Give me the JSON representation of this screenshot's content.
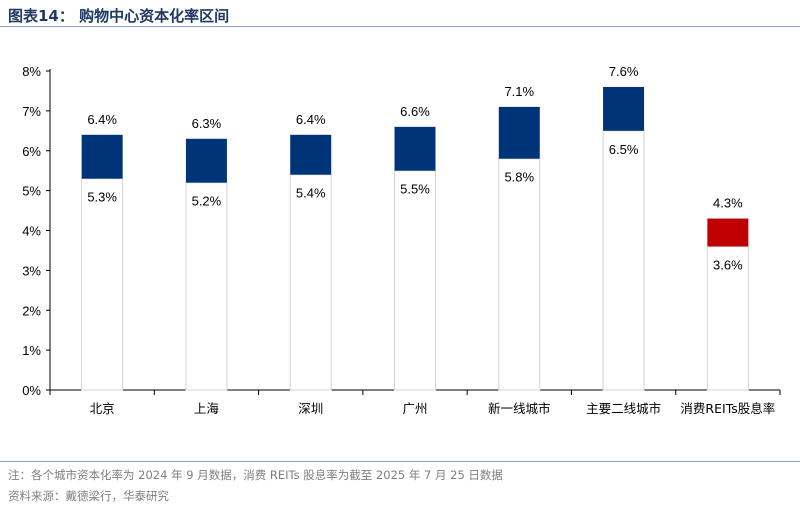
{
  "title": "图表14：  购物中心资本化率区间",
  "footer": {
    "note": "注：各个城市资本化率为 2024 年 9 月数据，消费 REITs 股息率为截至 2025 年 7 月 25 日数据",
    "source": "资料来源：戴德梁行，华泰研究"
  },
  "colors": {
    "upper_default": "#003478",
    "upper_highlight": "#c00000",
    "lower_fill": "#ffffff",
    "lower_border": "#d4d4d4",
    "axis": "#000000",
    "title": "#1f3864",
    "rule": "#8eaadb"
  },
  "chart_data": {
    "type": "bar",
    "subtype": "floating-range",
    "categories": [
      "北京",
      "上海",
      "深圳",
      "广州",
      "新一线城市",
      "主要二线城市",
      "消费REITs股息率"
    ],
    "series": [
      {
        "values": [
          5.3,
          5.2,
          5.4,
          5.5,
          5.8,
          6.5,
          3.6
        ]
      },
      {
        "values": [
          6.4,
          6.3,
          6.4,
          6.6,
          7.1,
          7.6,
          4.3
        ]
      }
    ],
    "low_labels": [
      "5.3%",
      "5.2%",
      "5.4%",
      "5.5%",
      "5.8%",
      "6.5%",
      "3.6%"
    ],
    "high_labels": [
      "6.4%",
      "6.3%",
      "6.4%",
      "6.6%",
      "7.1%",
      "7.6%",
      "4.3%"
    ],
    "highlight_index": 6,
    "ylim": [
      0,
      8
    ],
    "yticks": [
      0,
      1,
      2,
      3,
      4,
      5,
      6,
      7,
      8
    ],
    "ytick_labels": [
      "0%",
      "1%",
      "2%",
      "3%",
      "4%",
      "5%",
      "6%",
      "7%",
      "8%"
    ],
    "xlabel": "",
    "ylabel": "",
    "grid": false,
    "legend": "none"
  }
}
